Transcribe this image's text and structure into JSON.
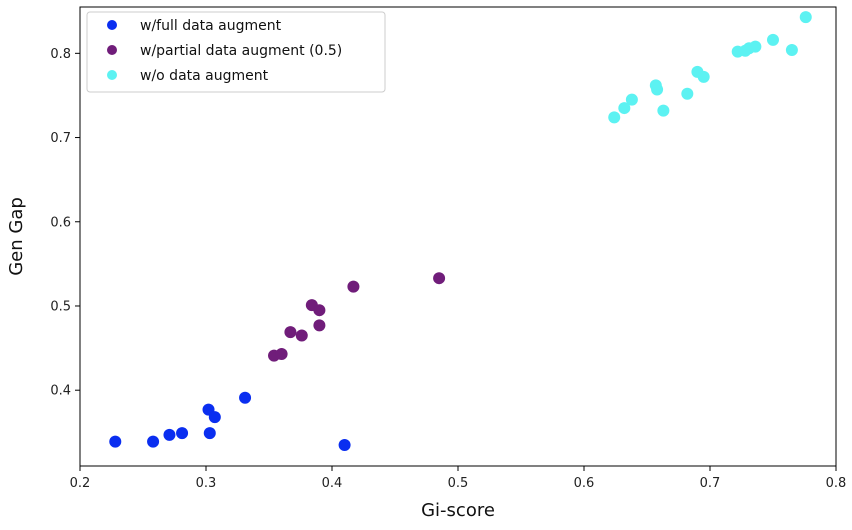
{
  "chart_data": {
    "type": "scatter",
    "title": "",
    "xlabel": "Gi-score",
    "ylabel": "Gen Gap",
    "xlim": [
      0.2,
      0.8
    ],
    "ylim": [
      0.31,
      0.855
    ],
    "xticks": [
      0.2,
      0.3,
      0.4,
      0.5,
      0.6,
      0.7,
      0.8
    ],
    "xtick_labels": [
      "0.2",
      "0.3",
      "0.4",
      "0.5",
      "0.6",
      "0.7",
      "0.8"
    ],
    "yticks": [
      0.4,
      0.5,
      0.6,
      0.7,
      0.8
    ],
    "ytick_labels": [
      "0.4",
      "0.5",
      "0.6",
      "0.7",
      "0.8"
    ],
    "grid": false,
    "legend_position": "top-left",
    "series": [
      {
        "name": "w/full data augment",
        "color": "#0a2ef0",
        "points": [
          {
            "x": 0.228,
            "y": 0.339
          },
          {
            "x": 0.258,
            "y": 0.339
          },
          {
            "x": 0.271,
            "y": 0.347
          },
          {
            "x": 0.281,
            "y": 0.349
          },
          {
            "x": 0.302,
            "y": 0.377
          },
          {
            "x": 0.307,
            "y": 0.368
          },
          {
            "x": 0.303,
            "y": 0.349
          },
          {
            "x": 0.331,
            "y": 0.391
          },
          {
            "x": 0.41,
            "y": 0.335
          }
        ]
      },
      {
        "name": "w/partial data augment (0.5)",
        "color": "#701d7a",
        "points": [
          {
            "x": 0.354,
            "y": 0.441
          },
          {
            "x": 0.36,
            "y": 0.443
          },
          {
            "x": 0.367,
            "y": 0.469
          },
          {
            "x": 0.376,
            "y": 0.465
          },
          {
            "x": 0.384,
            "y": 0.501
          },
          {
            "x": 0.39,
            "y": 0.495
          },
          {
            "x": 0.39,
            "y": 0.477
          },
          {
            "x": 0.417,
            "y": 0.523
          },
          {
            "x": 0.485,
            "y": 0.533
          }
        ]
      },
      {
        "name": "w/o data augment",
        "color": "#5cf2f2",
        "points": [
          {
            "x": 0.624,
            "y": 0.724
          },
          {
            "x": 0.632,
            "y": 0.735
          },
          {
            "x": 0.638,
            "y": 0.745
          },
          {
            "x": 0.657,
            "y": 0.762
          },
          {
            "x": 0.658,
            "y": 0.757
          },
          {
            "x": 0.663,
            "y": 0.732
          },
          {
            "x": 0.682,
            "y": 0.752
          },
          {
            "x": 0.69,
            "y": 0.778
          },
          {
            "x": 0.695,
            "y": 0.772
          },
          {
            "x": 0.722,
            "y": 0.802
          },
          {
            "x": 0.728,
            "y": 0.803
          },
          {
            "x": 0.731,
            "y": 0.806
          },
          {
            "x": 0.736,
            "y": 0.808
          },
          {
            "x": 0.75,
            "y": 0.816
          },
          {
            "x": 0.765,
            "y": 0.804
          },
          {
            "x": 0.776,
            "y": 0.843
          }
        ]
      }
    ]
  }
}
